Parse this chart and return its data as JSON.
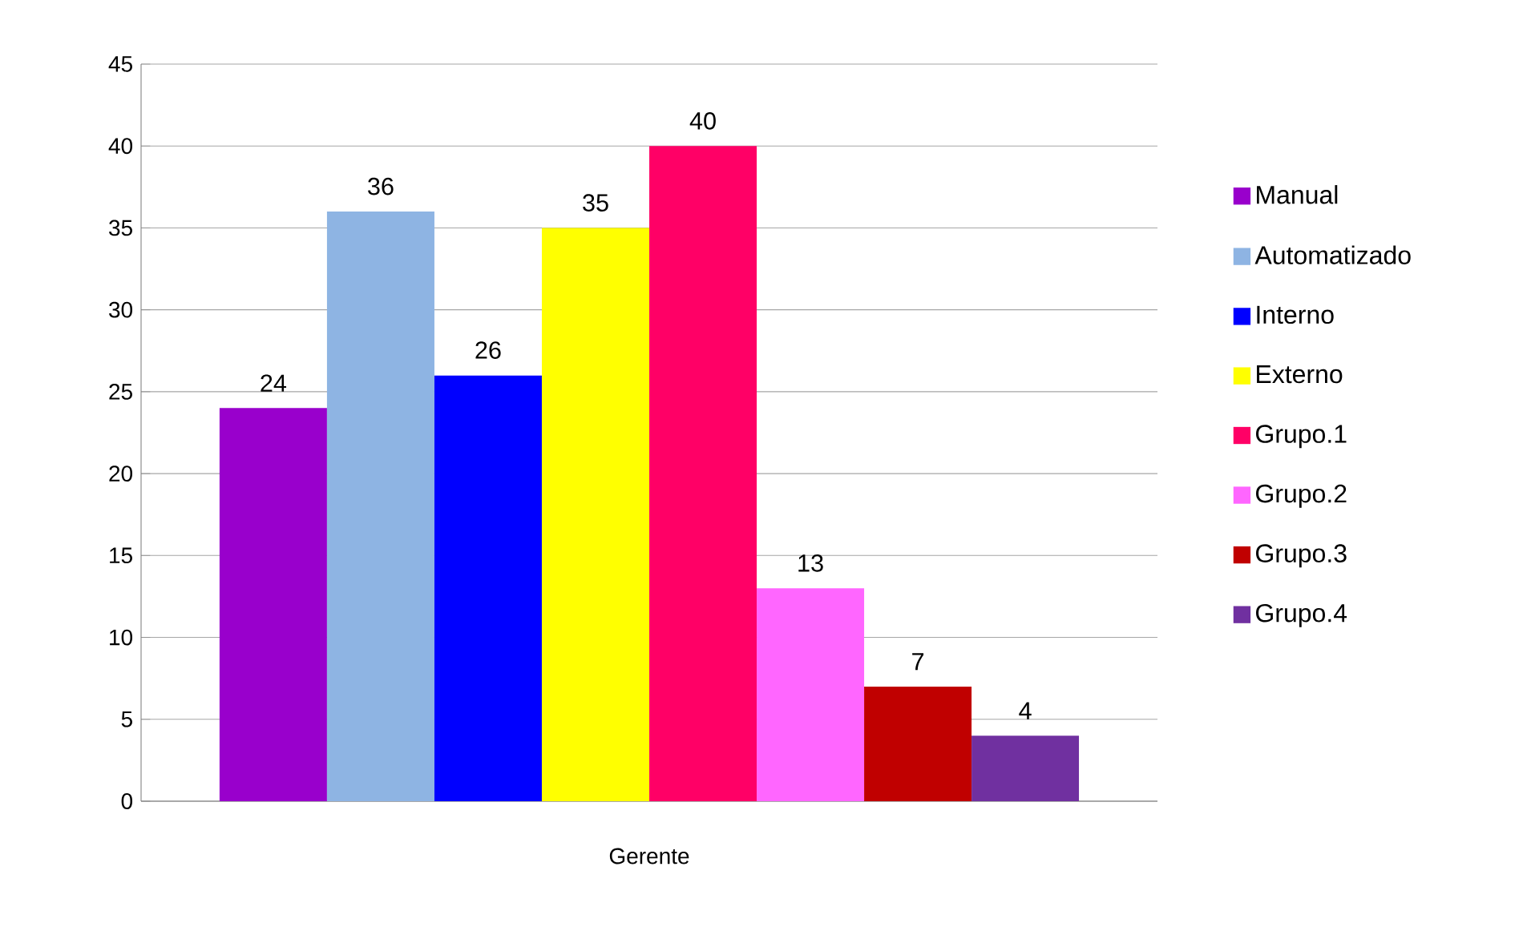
{
  "chart_data": {
    "type": "bar",
    "categories": [
      "Gerente"
    ],
    "series": [
      {
        "name": "Manual",
        "color": "#9900cc",
        "values": [
          24
        ]
      },
      {
        "name": "Automatizado",
        "color": "#8eb4e3",
        "values": [
          36
        ]
      },
      {
        "name": "Interno",
        "color": "#0000ff",
        "values": [
          26
        ]
      },
      {
        "name": "Externo",
        "color": "#ffff00",
        "values": [
          35
        ]
      },
      {
        "name": "Grupo.1",
        "color": "#ff0066",
        "values": [
          40
        ]
      },
      {
        "name": "Grupo.2",
        "color": "#ff66ff",
        "values": [
          13
        ]
      },
      {
        "name": "Grupo.3",
        "color": "#c00000",
        "values": [
          7
        ]
      },
      {
        "name": "Grupo.4",
        "color": "#7030a0",
        "values": [
          4
        ]
      }
    ],
    "ylim": [
      0,
      45
    ],
    "yticks": [
      0,
      5,
      10,
      15,
      20,
      25,
      30,
      35,
      40,
      45
    ],
    "grid": "y",
    "legend": "right",
    "data_labels": true
  }
}
